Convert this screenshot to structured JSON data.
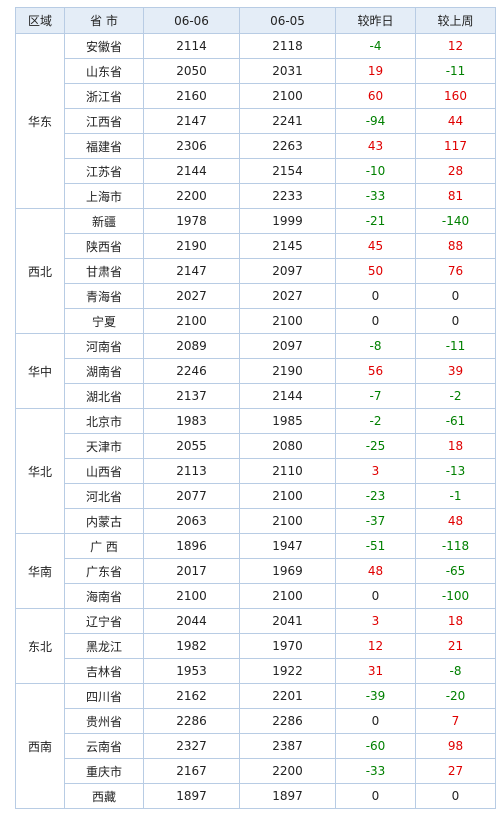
{
  "colors": {
    "header_bg": "#e4edf7",
    "border": "#b8cce4",
    "positive": "#e00000",
    "negative": "#008000"
  },
  "headers": {
    "region": "区域",
    "province": "省 市",
    "date1": "06-06",
    "date2": "06-05",
    "vs_prev_day": "较昨日",
    "vs_prev_week": "较上周"
  },
  "groups": [
    {
      "region": "华东",
      "rows": [
        {
          "province": "安徽省",
          "d1": "2114",
          "d2": "2118",
          "day": "-4",
          "week": "12"
        },
        {
          "province": "山东省",
          "d1": "2050",
          "d2": "2031",
          "day": "19",
          "week": "-11"
        },
        {
          "province": "浙江省",
          "d1": "2160",
          "d2": "2100",
          "day": "60",
          "week": "160"
        },
        {
          "province": "江西省",
          "d1": "2147",
          "d2": "2241",
          "day": "-94",
          "week": "44"
        },
        {
          "province": "福建省",
          "d1": "2306",
          "d2": "2263",
          "day": "43",
          "week": "117"
        },
        {
          "province": "江苏省",
          "d1": "2144",
          "d2": "2154",
          "day": "-10",
          "week": "28"
        },
        {
          "province": "上海市",
          "d1": "2200",
          "d2": "2233",
          "day": "-33",
          "week": "81"
        }
      ]
    },
    {
      "region": "西北",
      "rows": [
        {
          "province": "新疆",
          "d1": "1978",
          "d2": "1999",
          "day": "-21",
          "week": "-140"
        },
        {
          "province": "陕西省",
          "d1": "2190",
          "d2": "2145",
          "day": "45",
          "week": "88"
        },
        {
          "province": "甘肃省",
          "d1": "2147",
          "d2": "2097",
          "day": "50",
          "week": "76"
        },
        {
          "province": "青海省",
          "d1": "2027",
          "d2": "2027",
          "day": "0",
          "week": "0"
        },
        {
          "province": "宁夏",
          "d1": "2100",
          "d2": "2100",
          "day": "0",
          "week": "0"
        }
      ]
    },
    {
      "region": "华中",
      "rows": [
        {
          "province": "河南省",
          "d1": "2089",
          "d2": "2097",
          "day": "-8",
          "week": "-11"
        },
        {
          "province": "湖南省",
          "d1": "2246",
          "d2": "2190",
          "day": "56",
          "week": "39"
        },
        {
          "province": "湖北省",
          "d1": "2137",
          "d2": "2144",
          "day": "-7",
          "week": "-2"
        }
      ]
    },
    {
      "region": "华北",
      "rows": [
        {
          "province": "北京市",
          "d1": "1983",
          "d2": "1985",
          "day": "-2",
          "week": "-61"
        },
        {
          "province": "天津市",
          "d1": "2055",
          "d2": "2080",
          "day": "-25",
          "week": "18"
        },
        {
          "province": "山西省",
          "d1": "2113",
          "d2": "2110",
          "day": "3",
          "week": "-13"
        },
        {
          "province": "河北省",
          "d1": "2077",
          "d2": "2100",
          "day": "-23",
          "week": "-1"
        },
        {
          "province": "内蒙古",
          "d1": "2063",
          "d2": "2100",
          "day": "-37",
          "week": "48"
        }
      ]
    },
    {
      "region": "华南",
      "rows": [
        {
          "province": "广 西",
          "d1": "1896",
          "d2": "1947",
          "day": "-51",
          "week": "-118"
        },
        {
          "province": "广东省",
          "d1": "2017",
          "d2": "1969",
          "day": "48",
          "week": "-65"
        },
        {
          "province": "海南省",
          "d1": "2100",
          "d2": "2100",
          "day": "0",
          "week": "-100"
        }
      ]
    },
    {
      "region": "东北",
      "rows": [
        {
          "province": "辽宁省",
          "d1": "2044",
          "d2": "2041",
          "day": "3",
          "week": "18"
        },
        {
          "province": "黑龙江",
          "d1": "1982",
          "d2": "1970",
          "day": "12",
          "week": "21"
        },
        {
          "province": "吉林省",
          "d1": "1953",
          "d2": "1922",
          "day": "31",
          "week": "-8"
        }
      ]
    },
    {
      "region": "西南",
      "rows": [
        {
          "province": "四川省",
          "d1": "2162",
          "d2": "2201",
          "day": "-39",
          "week": "-20"
        },
        {
          "province": "贵州省",
          "d1": "2286",
          "d2": "2286",
          "day": "0",
          "week": "7"
        },
        {
          "province": "云南省",
          "d1": "2327",
          "d2": "2387",
          "day": "-60",
          "week": "98"
        },
        {
          "province": "重庆市",
          "d1": "2167",
          "d2": "2200",
          "day": "-33",
          "week": "27"
        },
        {
          "province": "西藏",
          "d1": "1897",
          "d2": "1897",
          "day": "0",
          "week": "0"
        }
      ]
    }
  ]
}
